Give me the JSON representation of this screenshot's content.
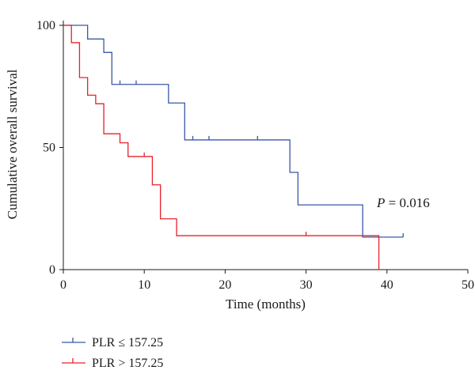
{
  "chart_data": {
    "type": "line",
    "title": "",
    "xlabel": "Time (months)",
    "ylabel": "Cumulative overall survival",
    "xlim": [
      0,
      50
    ],
    "ylim": [
      0,
      100
    ],
    "xticks": [
      0,
      10,
      20,
      30,
      40,
      50
    ],
    "yticks": [
      0,
      50,
      100
    ],
    "grid": false,
    "legend_position": "bottom-left",
    "annotation": {
      "italic": "P",
      "rest": " = 0.016"
    },
    "series": [
      {
        "name": "PLR ≤ 157.25",
        "color": "#3b57a7",
        "steps": [
          [
            0,
            100
          ],
          [
            3,
            94.4
          ],
          [
            5,
            88.9
          ],
          [
            6,
            75.8
          ],
          [
            13,
            68.2
          ],
          [
            15,
            53.1
          ],
          [
            28,
            39.8
          ],
          [
            29,
            26.5
          ],
          [
            37,
            13.3
          ],
          [
            42,
            13.3
          ]
        ],
        "censored": [
          [
            7,
            75.8
          ],
          [
            9,
            75.8
          ],
          [
            16,
            53.1
          ],
          [
            18,
            53.1
          ],
          [
            24,
            53.1
          ],
          [
            42,
            13.3
          ]
        ]
      },
      {
        "name": "PLR > 157.25",
        "color": "#e8212b",
        "steps": [
          [
            0,
            100
          ],
          [
            1,
            92.9
          ],
          [
            2,
            78.6
          ],
          [
            3,
            71.4
          ],
          [
            4,
            67.9
          ],
          [
            5,
            55.6
          ],
          [
            7,
            51.9
          ],
          [
            8,
            46.3
          ],
          [
            11,
            34.7
          ],
          [
            12,
            20.8
          ],
          [
            14,
            13.9
          ],
          [
            39,
            0
          ]
        ],
        "censored": [
          [
            10,
            46.3
          ],
          [
            30,
            13.9
          ]
        ]
      }
    ]
  }
}
